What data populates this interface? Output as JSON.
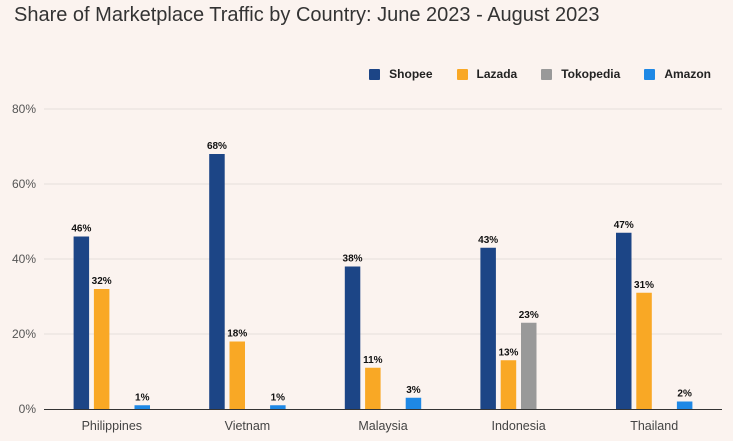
{
  "chart_data": {
    "type": "bar",
    "title": "Share of Marketplace Traffic by Country: June 2023 - August 2023",
    "categories": [
      "Philippines",
      "Vietnam",
      "Malaysia",
      "Indonesia",
      "Thailand"
    ],
    "series": [
      {
        "name": "Shopee",
        "color": "#1c4586",
        "values": [
          46,
          68,
          38,
          43,
          47
        ]
      },
      {
        "name": "Lazada",
        "color": "#f9a825",
        "values": [
          32,
          18,
          11,
          13,
          31
        ]
      },
      {
        "name": "Tokopedia",
        "color": "#999999",
        "values": [
          null,
          null,
          null,
          23,
          null
        ]
      },
      {
        "name": "Amazon",
        "color": "#1e88e5",
        "values": [
          1,
          1,
          3,
          null,
          2
        ]
      }
    ],
    "value_suffix": "%",
    "ylim": [
      0,
      80
    ],
    "yticks": [
      "0%",
      "20%",
      "40%",
      "60%",
      "80%"
    ],
    "grid": true,
    "legend_position": "top-right"
  }
}
